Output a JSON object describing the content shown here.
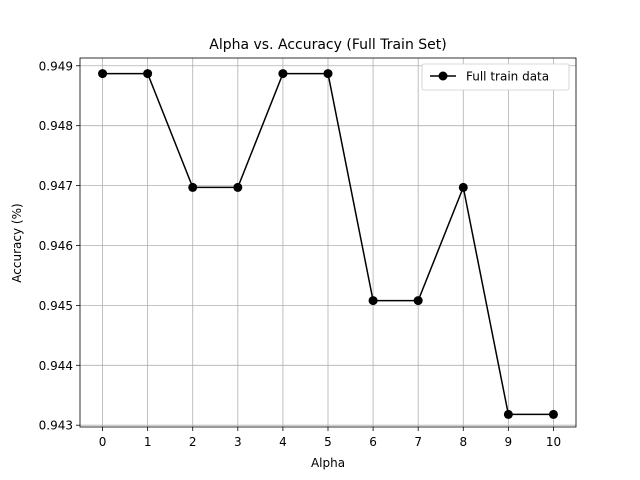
{
  "chart_data": {
    "type": "line",
    "title": "Alpha vs. Accuracy (Full Train Set)",
    "xlabel": "Alpha",
    "ylabel": "Accuracy (%)",
    "x": [
      0,
      1,
      2,
      3,
      4,
      5,
      6,
      7,
      8,
      9,
      10
    ],
    "series": [
      {
        "name": "Full train data",
        "color": "#000000",
        "marker": "circle",
        "values": [
          0.94887,
          0.94887,
          0.94697,
          0.94697,
          0.94887,
          0.94887,
          0.94508,
          0.94508,
          0.94697,
          0.94318,
          0.94318
        ]
      }
    ],
    "xticks": [
      0,
      1,
      2,
      3,
      4,
      5,
      6,
      7,
      8,
      9,
      10
    ],
    "yticks": [
      0.943,
      0.944,
      0.945,
      0.946,
      0.947,
      0.948,
      0.949
    ],
    "xlim": [
      -0.5,
      10.5
    ],
    "ylim": [
      0.94297,
      0.94913
    ],
    "grid": true,
    "legend_position": "top-right"
  }
}
